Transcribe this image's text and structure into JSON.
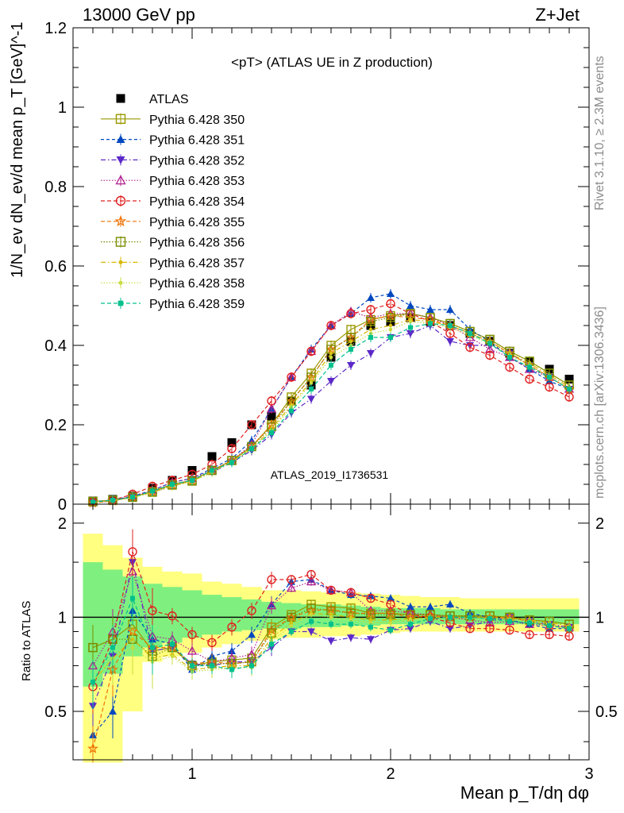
{
  "header": {
    "left": "13000 GeV pp",
    "right": "Z+Jet"
  },
  "side_labels": {
    "top": "Rivet 3.1.10, ≥ 2.3M events",
    "bottom": "mcplots.cern.ch [arXiv:1306.3436]"
  },
  "colors": {
    "band_inner": "#7ff07f",
    "band_outer": "#ffff80",
    "grid": "#000000"
  },
  "chart_data": [
    {
      "type": "line",
      "title": "<pT> (ATLAS UE in Z production)",
      "watermark": "ATLAS_2019_I1736531",
      "xlabel": "Mean p_T/dη dφ",
      "ylabel": "1/N_ev dN_ev/d mean p_T [GeV]^-1",
      "xlim": [
        0.4,
        3.0
      ],
      "ylim": [
        0,
        1.2
      ],
      "y_ticks": [
        "0",
        "0.2",
        "0.4",
        "0.6",
        "0.8",
        "1",
        "1.2"
      ],
      "x": [
        0.5,
        0.6,
        0.7,
        0.8,
        0.9,
        1.0,
        1.1,
        1.2,
        1.3,
        1.4,
        1.5,
        1.6,
        1.7,
        1.8,
        1.9,
        2.0,
        2.1,
        2.2,
        2.3,
        2.4,
        2.5,
        2.6,
        2.7,
        2.8,
        2.9
      ],
      "series": [
        {
          "name": "ATLAS",
          "style": "square-filled",
          "color": "#000000",
          "dash": "",
          "values": [
            0.008,
            0.012,
            0.02,
            0.04,
            0.06,
            0.085,
            0.12,
            0.155,
            0.2,
            0.22,
            0.26,
            0.3,
            0.37,
            0.41,
            0.45,
            0.46,
            0.47,
            0.46,
            0.45,
            0.43,
            0.41,
            0.38,
            0.36,
            0.34,
            0.315
          ]
        },
        {
          "name": "Pythia 6.428 350",
          "style": "square-open",
          "color": "#999900",
          "dash": "",
          "values": [
            0.007,
            0.01,
            0.018,
            0.032,
            0.05,
            0.06,
            0.085,
            0.11,
            0.145,
            0.2,
            0.27,
            0.33,
            0.4,
            0.44,
            0.465,
            0.475,
            0.48,
            0.47,
            0.455,
            0.435,
            0.415,
            0.385,
            0.36,
            0.33,
            0.3
          ]
        },
        {
          "name": "Pythia 6.428 351",
          "style": "triangle-up-filled",
          "color": "#0048c0",
          "dash": "4,3",
          "values": [
            0.006,
            0.01,
            0.02,
            0.035,
            0.055,
            0.065,
            0.09,
            0.115,
            0.16,
            0.24,
            0.32,
            0.39,
            0.45,
            0.48,
            0.52,
            0.53,
            0.5,
            0.49,
            0.49,
            0.44,
            0.41,
            0.37,
            0.34,
            0.31,
            0.29
          ]
        },
        {
          "name": "Pythia 6.428 352",
          "style": "triangle-down-filled",
          "color": "#5c28c8",
          "dash": "6,3,1.5,3",
          "values": [
            0.004,
            0.008,
            0.018,
            0.03,
            0.045,
            0.06,
            0.08,
            0.105,
            0.135,
            0.175,
            0.23,
            0.265,
            0.31,
            0.35,
            0.38,
            0.42,
            0.43,
            0.45,
            0.41,
            0.4,
            0.4,
            0.38,
            0.35,
            0.32,
            0.29
          ]
        },
        {
          "name": "Pythia 6.428 353",
          "style": "triangle-up-open",
          "color": "#b02090",
          "dash": "1.5,2",
          "values": [
            0.006,
            0.01,
            0.02,
            0.035,
            0.055,
            0.065,
            0.085,
            0.11,
            0.15,
            0.24,
            0.32,
            0.385,
            0.45,
            0.485,
            0.47,
            0.48,
            0.48,
            0.47,
            0.45,
            0.42,
            0.39,
            0.37,
            0.34,
            0.32,
            0.29
          ]
        },
        {
          "name": "Pythia 6.428 354",
          "style": "circle-open",
          "color": "#e02020",
          "dash": "5,3",
          "values": [
            0.005,
            0.01,
            0.025,
            0.045,
            0.06,
            0.075,
            0.1,
            0.14,
            0.2,
            0.26,
            0.32,
            0.385,
            0.45,
            0.48,
            0.49,
            0.505,
            0.48,
            0.46,
            0.43,
            0.395,
            0.375,
            0.345,
            0.315,
            0.295,
            0.27
          ]
        },
        {
          "name": "Pythia 6.428 355",
          "style": "star-open",
          "color": "#f07000",
          "dash": "5,3",
          "values": [
            0.003,
            0.008,
            0.018,
            0.032,
            0.048,
            0.06,
            0.085,
            0.11,
            0.145,
            0.2,
            0.26,
            0.32,
            0.39,
            0.42,
            0.465,
            0.475,
            0.47,
            0.465,
            0.45,
            0.43,
            0.41,
            0.38,
            0.35,
            0.32,
            0.29
          ]
        },
        {
          "name": "Pythia 6.428 356",
          "style": "square-open",
          "color": "#7a8c00",
          "dash": "1.5,2",
          "values": [
            0.006,
            0.01,
            0.017,
            0.03,
            0.048,
            0.058,
            0.085,
            0.11,
            0.145,
            0.195,
            0.26,
            0.32,
            0.39,
            0.42,
            0.46,
            0.47,
            0.48,
            0.47,
            0.455,
            0.435,
            0.415,
            0.385,
            0.36,
            0.33,
            0.3
          ]
        },
        {
          "name": "Pythia 6.428 357",
          "style": "small-filled",
          "color": "#d8b800",
          "dash": "6,3,1.5,3",
          "values": [
            0.005,
            0.009,
            0.017,
            0.03,
            0.046,
            0.058,
            0.082,
            0.108,
            0.14,
            0.19,
            0.25,
            0.31,
            0.38,
            0.41,
            0.44,
            0.45,
            0.465,
            0.46,
            0.45,
            0.43,
            0.41,
            0.38,
            0.355,
            0.325,
            0.295
          ]
        },
        {
          "name": "Pythia 6.428 358",
          "style": "small-filled",
          "color": "#c8dc3c",
          "dash": "1.5,2",
          "values": [
            0.005,
            0.009,
            0.016,
            0.029,
            0.045,
            0.057,
            0.08,
            0.106,
            0.138,
            0.185,
            0.245,
            0.305,
            0.37,
            0.4,
            0.43,
            0.44,
            0.46,
            0.455,
            0.445,
            0.425,
            0.405,
            0.375,
            0.35,
            0.32,
            0.29
          ]
        },
        {
          "name": "Pythia 6.428 359",
          "style": "square-filled-small",
          "color": "#00c08c",
          "dash": "5,3",
          "values": [
            0.005,
            0.01,
            0.018,
            0.033,
            0.05,
            0.06,
            0.085,
            0.105,
            0.14,
            0.18,
            0.235,
            0.29,
            0.35,
            0.39,
            0.42,
            0.42,
            0.445,
            0.455,
            0.45,
            0.43,
            0.405,
            0.37,
            0.345,
            0.32,
            0.29
          ]
        }
      ]
    },
    {
      "type": "line",
      "ylabel": "Ratio to ATLAS",
      "xlabel": "Mean p_T/dη dφ",
      "xlim": [
        0.4,
        3.0
      ],
      "ylim": [
        0.35,
        2.3
      ],
      "y_scale": "log",
      "x_ticks": [
        "1",
        "2",
        "3"
      ],
      "y_ticks": [
        "0.5",
        "1",
        "2"
      ],
      "x": [
        0.5,
        0.6,
        0.7,
        0.8,
        0.9,
        1.0,
        1.1,
        1.2,
        1.3,
        1.4,
        1.5,
        1.6,
        1.7,
        1.8,
        1.9,
        2.0,
        2.1,
        2.2,
        2.3,
        2.4,
        2.5,
        2.6,
        2.7,
        2.8,
        2.9
      ],
      "band_outer": [
        [
          0.3,
          1.85
        ],
        [
          0.3,
          1.7
        ],
        [
          0.5,
          1.55
        ],
        [
          0.72,
          1.45
        ],
        [
          0.75,
          1.4
        ],
        [
          0.77,
          1.38
        ],
        [
          0.8,
          1.3
        ],
        [
          0.82,
          1.28
        ],
        [
          0.84,
          1.25
        ],
        [
          0.85,
          1.22
        ],
        [
          0.86,
          1.22
        ],
        [
          0.86,
          1.21
        ],
        [
          0.87,
          1.2
        ],
        [
          0.87,
          1.2
        ],
        [
          0.88,
          1.19
        ],
        [
          0.89,
          1.18
        ],
        [
          0.9,
          1.17
        ],
        [
          0.9,
          1.16
        ],
        [
          0.9,
          1.16
        ],
        [
          0.9,
          1.15
        ],
        [
          0.9,
          1.15
        ],
        [
          0.9,
          1.15
        ],
        [
          0.9,
          1.15
        ],
        [
          0.9,
          1.15
        ],
        [
          0.9,
          1.15
        ]
      ],
      "band_inner": [
        [
          0.6,
          1.5
        ],
        [
          0.66,
          1.42
        ],
        [
          0.75,
          1.35
        ],
        [
          0.8,
          1.28
        ],
        [
          0.83,
          1.25
        ],
        [
          0.86,
          1.22
        ],
        [
          0.88,
          1.18
        ],
        [
          0.9,
          1.16
        ],
        [
          0.91,
          1.14
        ],
        [
          0.92,
          1.12
        ],
        [
          0.92,
          1.11
        ],
        [
          0.93,
          1.1
        ],
        [
          0.93,
          1.1
        ],
        [
          0.94,
          1.09
        ],
        [
          0.94,
          1.08
        ],
        [
          0.95,
          1.07
        ],
        [
          0.95,
          1.07
        ],
        [
          0.95,
          1.07
        ],
        [
          0.95,
          1.06
        ],
        [
          0.95,
          1.06
        ],
        [
          0.95,
          1.06
        ],
        [
          0.95,
          1.06
        ],
        [
          0.95,
          1.06
        ],
        [
          0.95,
          1.06
        ],
        [
          0.95,
          1.06
        ]
      ],
      "series": [
        {
          "name": "Pythia 6.428 350",
          "values": [
            0.8,
            0.85,
            0.95,
            0.78,
            0.8,
            0.7,
            0.72,
            0.73,
            0.74,
            0.93,
            1.02,
            1.1,
            1.08,
            1.07,
            1.03,
            1.03,
            1.02,
            1.02,
            1.01,
            1.01,
            1.01,
            1.0,
            0.98,
            0.97,
            0.95
          ]
        },
        {
          "name": "Pythia 6.428 351",
          "values": [
            0.42,
            0.5,
            1.05,
            0.85,
            0.82,
            0.68,
            0.75,
            0.78,
            0.88,
            1.1,
            1.3,
            1.32,
            1.22,
            1.18,
            1.17,
            1.15,
            1.08,
            1.08,
            1.1,
            1.03,
            1.0,
            0.98,
            0.95,
            0.92,
            0.92
          ]
        },
        {
          "name": "Pythia 6.428 352",
          "values": [
            0.52,
            0.75,
            1.5,
            0.78,
            0.8,
            0.71,
            0.7,
            0.72,
            0.72,
            0.8,
            0.9,
            0.9,
            0.84,
            0.86,
            0.85,
            0.91,
            0.92,
            0.97,
            0.92,
            0.94,
            0.97,
            1.0,
            0.97,
            0.95,
            0.93
          ]
        },
        {
          "name": "Pythia 6.428 353",
          "values": [
            0.7,
            0.9,
            1.4,
            0.87,
            0.85,
            0.78,
            0.72,
            0.74,
            0.76,
            1.09,
            1.24,
            1.3,
            1.22,
            1.2,
            1.05,
            1.05,
            1.03,
            1.02,
            1.0,
            0.98,
            0.96,
            0.97,
            0.95,
            0.94,
            0.93
          ]
        },
        {
          "name": "Pythia 6.428 354",
          "values": [
            0.6,
            0.85,
            1.62,
            1.05,
            1.01,
            0.88,
            0.83,
            0.93,
            1.05,
            1.32,
            1.32,
            1.37,
            1.22,
            1.2,
            1.15,
            1.1,
            1.02,
            1.0,
            0.96,
            0.92,
            0.92,
            0.91,
            0.88,
            0.88,
            0.87
          ]
        },
        {
          "name": "Pythia 6.428 355",
          "values": [
            0.38,
            0.68,
            0.9,
            0.8,
            0.8,
            0.71,
            0.72,
            0.71,
            0.72,
            0.91,
            1.0,
            1.05,
            1.06,
            1.03,
            1.03,
            1.03,
            1.0,
            1.01,
            1.0,
            1.0,
            1.0,
            1.0,
            0.97,
            0.94,
            0.92
          ]
        },
        {
          "name": "Pythia 6.428 356",
          "values": [
            0.8,
            0.85,
            0.85,
            0.75,
            0.8,
            0.7,
            0.71,
            0.71,
            0.72,
            0.89,
            1.0,
            1.07,
            1.05,
            1.03,
            1.02,
            1.02,
            1.02,
            1.02,
            1.01,
            1.01,
            1.01,
            1.0,
            0.98,
            0.97,
            0.95
          ]
        },
        {
          "name": "Pythia 6.428 357",
          "values": [
            0.62,
            0.74,
            0.85,
            0.74,
            0.76,
            0.68,
            0.69,
            0.7,
            0.7,
            0.86,
            0.96,
            1.03,
            1.02,
            1.0,
            0.98,
            0.98,
            0.99,
            1.0,
            1.0,
            1.0,
            1.0,
            0.99,
            0.98,
            0.96,
            0.94
          ]
        },
        {
          "name": "Pythia 6.428 358",
          "values": [
            0.62,
            0.74,
            0.8,
            0.72,
            0.75,
            0.67,
            0.68,
            0.69,
            0.69,
            0.84,
            0.94,
            1.02,
            1.0,
            0.98,
            0.96,
            0.96,
            0.98,
            0.99,
            0.99,
            0.99,
            0.99,
            0.98,
            0.97,
            0.95,
            0.92
          ]
        },
        {
          "name": "Pythia 6.428 359",
          "values": [
            0.62,
            0.8,
            1.15,
            0.8,
            0.82,
            0.7,
            0.7,
            0.68,
            0.7,
            0.82,
            0.9,
            0.97,
            0.95,
            0.95,
            0.93,
            0.91,
            0.95,
            0.99,
            1.0,
            1.0,
            0.99,
            0.97,
            0.96,
            0.94,
            0.92
          ]
        }
      ]
    }
  ]
}
